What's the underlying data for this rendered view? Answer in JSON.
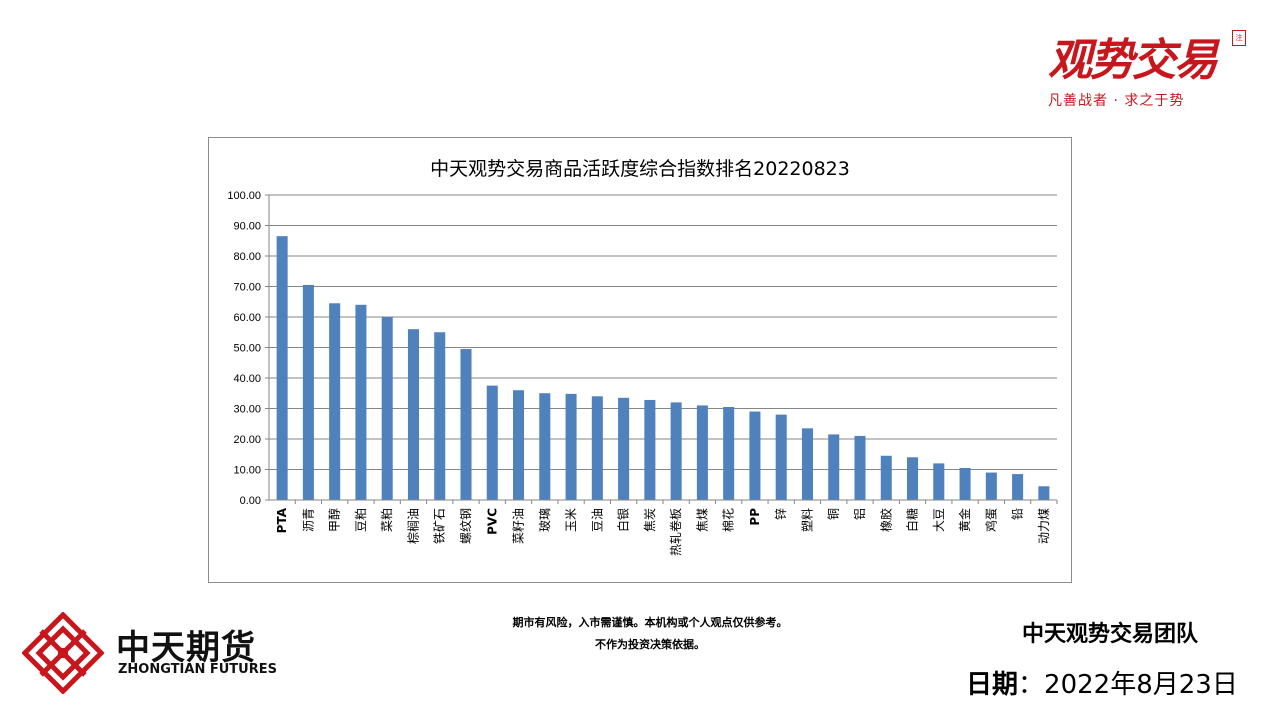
{
  "brand": {
    "name": "观势交易",
    "seal": "注",
    "slogan": "凡善战者 · 求之于势"
  },
  "chart_data": {
    "type": "bar",
    "title": "中天观势交易商品活跃度综合指数排名20220823",
    "xlabel": "",
    "ylabel": "",
    "ylim": [
      0,
      100
    ],
    "ytick_labels": [
      "0.00",
      "10.00",
      "20.00",
      "30.00",
      "40.00",
      "50.00",
      "60.00",
      "70.00",
      "80.00",
      "90.00",
      "100.00"
    ],
    "grid": true,
    "legend": "none",
    "bar_color": "#4f81bd",
    "categories": [
      "PTA",
      "沥青",
      "甲醇",
      "豆粕",
      "菜粕",
      "棕榈油",
      "铁矿石",
      "螺纹钢",
      "PVC",
      "菜籽油",
      "玻璃",
      "玉米",
      "豆油",
      "白银",
      "焦炭",
      "热轧卷板",
      "焦煤",
      "棉花",
      "PP",
      "锌",
      "塑料",
      "铜",
      "铝",
      "橡胶",
      "白糖",
      "大豆",
      "黄金",
      "鸡蛋",
      "铅",
      "动力煤"
    ],
    "values": [
      86.5,
      70.5,
      64.5,
      64.0,
      60.0,
      56.0,
      55.0,
      49.5,
      37.5,
      36.0,
      35.0,
      34.8,
      34.0,
      33.5,
      32.8,
      32.0,
      31.0,
      30.5,
      29.0,
      28.0,
      23.5,
      21.5,
      21.0,
      14.5,
      14.0,
      12.0,
      10.5,
      9.0,
      8.5,
      4.5
    ]
  },
  "disclaimer": {
    "line1": "期市有风险，入市需谨慎。本机构或个人观点仅供参考。",
    "line2": "不作为投资决策依据。"
  },
  "team": "中天观势交易团队",
  "date": {
    "label": "日期",
    "sep": "：",
    "value": "2022年8月23日"
  },
  "company": {
    "name": "中天期货",
    "en": "ZHONGTIAN FUTURES"
  },
  "colors": {
    "brand_red": "#c8161d",
    "bar": "#4f81bd"
  }
}
